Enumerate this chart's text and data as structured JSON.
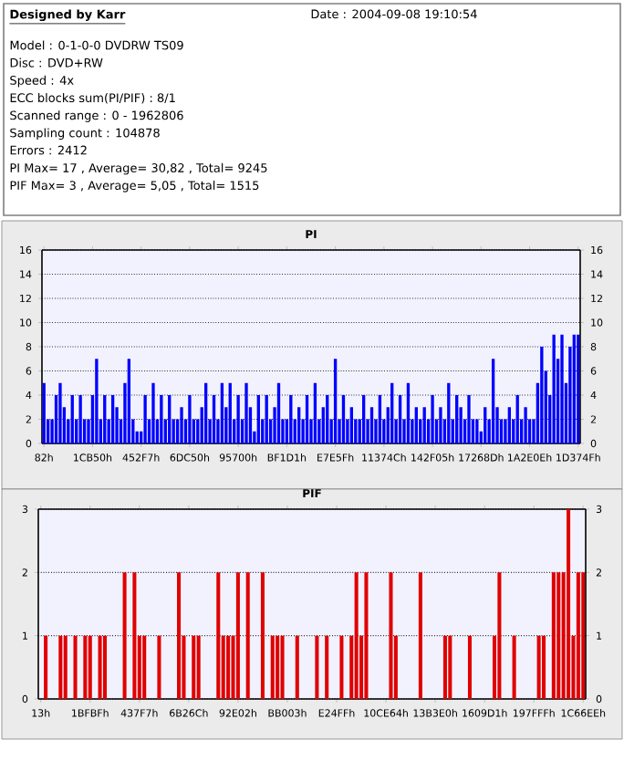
{
  "chart_data": [
    {
      "type": "other",
      "title": "Designed by Karr",
      "annotations": [
        "Date : 2004-09-08 19:10:54",
        "Model : 0-1-0-0 DVDRW TS09",
        "Disc : DVD+RW",
        "Speed : 4x",
        "ECC blocks sum(PI/PIF) : 8/1",
        "Scanned range : 0 - 1962806",
        "Sampling count : 104878",
        "Errors : 2412",
        "PI Max= 17 , Average= 30,82 , Total= 9245",
        "PIF Max= 3 , Average= 5,05 , Total= 1515"
      ]
    },
    {
      "type": "bar",
      "title": "PI",
      "color": "#0000ff",
      "categories": [
        "82h",
        null,
        null,
        null,
        null,
        null,
        null,
        null,
        null,
        null,
        null,
        null,
        "1CB50h",
        null,
        null,
        null,
        null,
        null,
        null,
        null,
        null,
        null,
        null,
        null,
        "452F7h",
        null,
        null,
        null,
        null,
        null,
        null,
        null,
        null,
        null,
        null,
        null,
        "6DC50h",
        null,
        null,
        null,
        null,
        null,
        null,
        null,
        null,
        null,
        null,
        null,
        "95700h",
        null,
        null,
        null,
        null,
        null,
        null,
        null,
        null,
        null,
        null,
        null,
        "BF1D1h",
        null,
        null,
        null,
        null,
        null,
        null,
        null,
        null,
        null,
        null,
        null,
        "E7E5Fh",
        null,
        null,
        null,
        null,
        null,
        null,
        null,
        null,
        null,
        null,
        null,
        "11374Ch",
        null,
        null,
        null,
        null,
        null,
        null,
        null,
        null,
        null,
        null,
        null,
        "142F05h",
        null,
        null,
        null,
        null,
        null,
        null,
        null,
        null,
        null,
        null,
        null,
        "17268Dh",
        null,
        null,
        null,
        null,
        null,
        null,
        null,
        null,
        null,
        null,
        null,
        "1A2E0Eh",
        null,
        null,
        null,
        null,
        null,
        null,
        null,
        null,
        null,
        null,
        null,
        "1D374Fh"
      ],
      "values": [
        5,
        2,
        2,
        4,
        5,
        3,
        2,
        4,
        2,
        4,
        2,
        2,
        4,
        7,
        2,
        4,
        2,
        4,
        3,
        2,
        5,
        7,
        2,
        1,
        1,
        4,
        2,
        5,
        2,
        4,
        2,
        4,
        2,
        2,
        3,
        2,
        4,
        2,
        2,
        3,
        5,
        2,
        4,
        2,
        5,
        3,
        5,
        2,
        4,
        2,
        5,
        3,
        1,
        4,
        2,
        4,
        2,
        3,
        5,
        2,
        2,
        4,
        2,
        3,
        2,
        4,
        2,
        5,
        2,
        3,
        4,
        2,
        7,
        2,
        4,
        2,
        3,
        2,
        2,
        4,
        2,
        3,
        2,
        4,
        2,
        3,
        5,
        2,
        4,
        2,
        5,
        2,
        3,
        2,
        3,
        2,
        4,
        2,
        3,
        2,
        5,
        2,
        4,
        3,
        2,
        4,
        2,
        2,
        1,
        3,
        2,
        7,
        3,
        2,
        2,
        3,
        2,
        4,
        2,
        3,
        2,
        2,
        5,
        8,
        6,
        4,
        9,
        7,
        9,
        5,
        8,
        9,
        9
      ],
      "ylim": [
        0,
        16
      ],
      "yticks": [
        0,
        2,
        4,
        6,
        8,
        10,
        12,
        14,
        16
      ],
      "y2lim": [
        0,
        16
      ],
      "y2ticks": [
        0,
        2,
        4,
        6,
        8,
        10,
        12,
        14,
        16
      ],
      "grid": "y"
    },
    {
      "type": "bar",
      "title": "PIF",
      "color": "#e00000",
      "categories": [
        "13h",
        null,
        null,
        null,
        null,
        null,
        null,
        null,
        null,
        null,
        "1BFBFh",
        null,
        null,
        null,
        null,
        null,
        null,
        null,
        null,
        null,
        "437F7h",
        null,
        null,
        null,
        null,
        null,
        null,
        null,
        null,
        null,
        "6B26Ch",
        null,
        null,
        null,
        null,
        null,
        null,
        null,
        null,
        null,
        "92E02h",
        null,
        null,
        null,
        null,
        null,
        null,
        null,
        null,
        null,
        "BB003h",
        null,
        null,
        null,
        null,
        null,
        null,
        null,
        null,
        null,
        "E24FFh",
        null,
        null,
        null,
        null,
        null,
        null,
        null,
        null,
        null,
        "10CE64h",
        null,
        null,
        null,
        null,
        null,
        null,
        null,
        null,
        null,
        "13B3E0h",
        null,
        null,
        null,
        null,
        null,
        null,
        null,
        null,
        null,
        "1609D1h",
        null,
        null,
        null,
        null,
        null,
        null,
        null,
        null,
        null,
        "197FFFh",
        null,
        null,
        null,
        null,
        null,
        null,
        null,
        null,
        null,
        "1C66EEh"
      ],
      "values": [
        0,
        1,
        0,
        0,
        1,
        1,
        0,
        1,
        0,
        1,
        1,
        0,
        1,
        1,
        0,
        0,
        0,
        2,
        0,
        2,
        1,
        1,
        0,
        0,
        1,
        0,
        0,
        0,
        2,
        1,
        0,
        1,
        1,
        0,
        0,
        0,
        2,
        1,
        1,
        1,
        2,
        0,
        2,
        0,
        0,
        2,
        0,
        1,
        1,
        1,
        0,
        0,
        1,
        0,
        0,
        0,
        1,
        0,
        1,
        0,
        0,
        1,
        0,
        1,
        2,
        1,
        2,
        0,
        0,
        0,
        0,
        2,
        1,
        0,
        0,
        0,
        0,
        2,
        0,
        0,
        0,
        0,
        1,
        1,
        0,
        0,
        0,
        1,
        0,
        0,
        0,
        0,
        1,
        2,
        0,
        0,
        1,
        0,
        0,
        0,
        0,
        1,
        1,
        0,
        2,
        2,
        2,
        3,
        1,
        2,
        2
      ],
      "ylim": [
        0,
        3
      ],
      "yticks": [
        0,
        1,
        2,
        3
      ],
      "y2lim": [
        0,
        3
      ],
      "y2ticks": [
        0,
        1,
        2,
        3
      ],
      "grid": "y"
    }
  ]
}
